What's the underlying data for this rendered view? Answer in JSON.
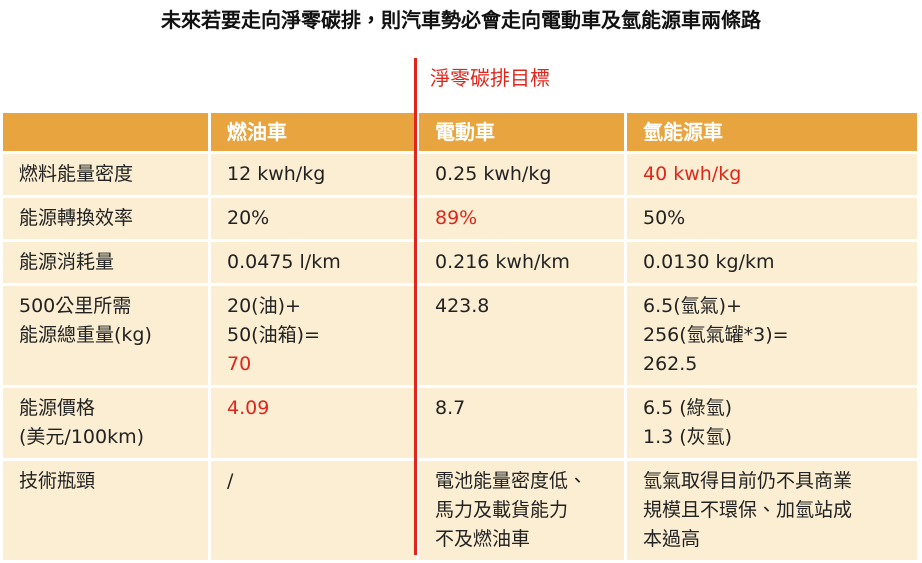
{
  "header": {
    "title": "未來若要走向淨零碳排，則汽車勢必會走向電動車及氫能源車兩條路",
    "goal": "淨零碳排目標"
  },
  "table": {
    "columns": [
      "燃油車",
      "電動車",
      "氫能源車"
    ],
    "rows": [
      [
        [
          "燃料能量密度"
        ],
        [
          "12 kwh/kg"
        ],
        [
          "0.25 kwh/kg"
        ],
        [
          "40 kwh/kg"
        ]
      ],
      [
        [
          "能源轉換效率"
        ],
        [
          "20%"
        ],
        [
          "89%"
        ],
        [
          "50%"
        ]
      ],
      [
        [
          "能源消耗量"
        ],
        [
          "0.0475 l/km"
        ],
        [
          "0.216 kwh/km"
        ],
        [
          "0.0130 kg/km"
        ]
      ],
      [
        [
          "500公里所需",
          "能源總重量(kg)"
        ],
        [
          "20(油)+",
          "50(油箱)=",
          "70"
        ],
        [
          "423.8"
        ],
        [
          "6.5(氫氣)+",
          "256(氫氣罐*3)=",
          "262.5"
        ]
      ],
      [
        [
          "能源價格",
          "(美元/100km)"
        ],
        [
          "4.09"
        ],
        [
          "8.7"
        ],
        [
          "6.5 (綠氫)",
          "1.3 (灰氫)"
        ]
      ],
      [
        [
          "技術瓶頸"
        ],
        [
          "/"
        ],
        [
          "電池能量密度低、",
          "馬力及載貨能力",
          "不及燃油車"
        ],
        [
          "氫氣取得目前仍不具商業",
          "規模且不環保、加氫站成",
          "本過高"
        ]
      ]
    ]
  }
}
